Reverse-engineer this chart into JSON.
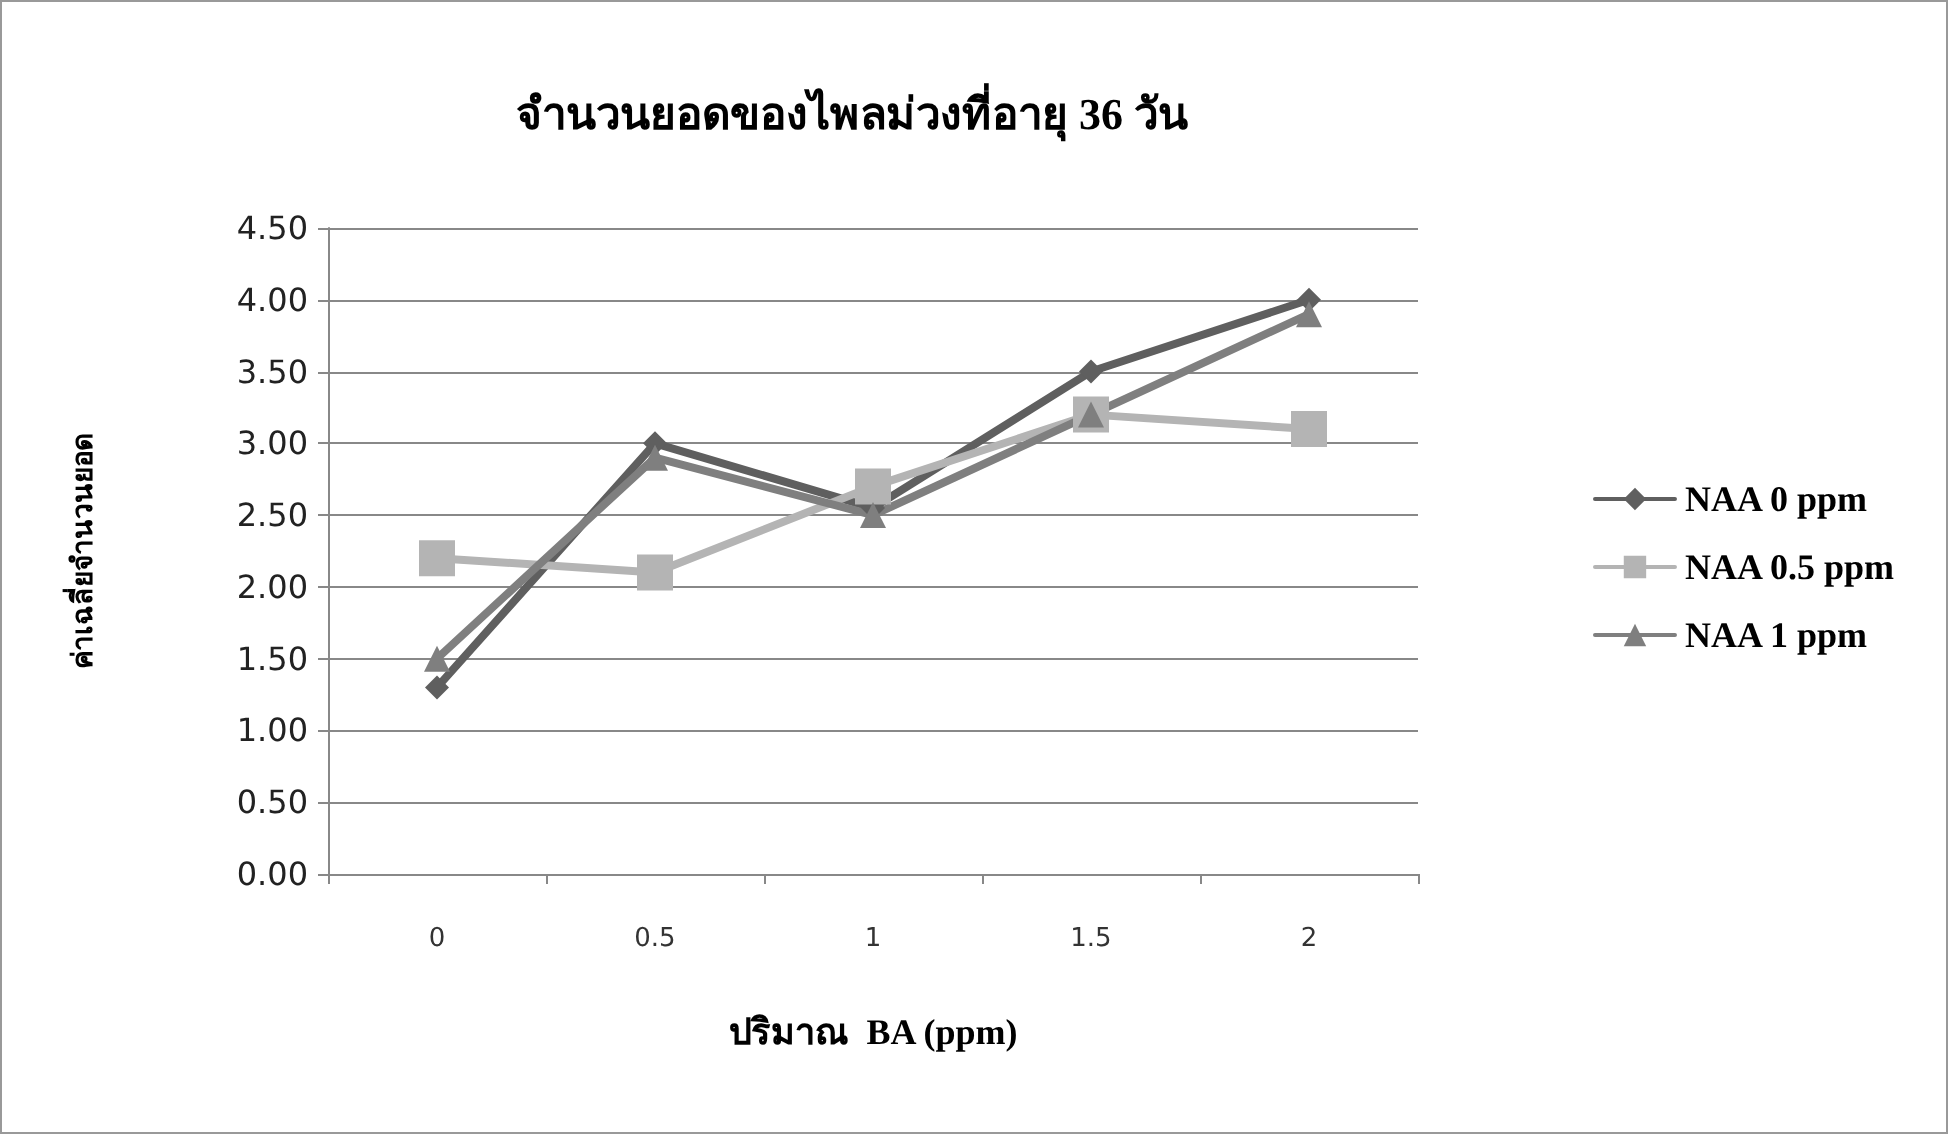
{
  "chart_data": {
    "type": "line",
    "title": "จำนวนยอดของไพลม่วงที่อายุ 36 วัน",
    "xlabel": "ปริมาณ  BA (ppm)",
    "ylabel": "ค่าเฉลี่ยจำนวนยอด",
    "categories": [
      "0",
      "0.5",
      "1",
      "1.5",
      "2"
    ],
    "series": [
      {
        "name": "NAA 0 ppm",
        "color": "#5f5f5f",
        "marker": "diamond",
        "values": [
          1.3,
          3.0,
          2.55,
          3.5,
          4.0
        ]
      },
      {
        "name": "NAA 0.5 ppm",
        "color": "#b4b4b4",
        "marker": "square",
        "values": [
          2.2,
          2.1,
          2.7,
          3.2,
          3.1
        ]
      },
      {
        "name": "NAA 1 ppm",
        "color": "#7f7f7f",
        "marker": "triangle",
        "values": [
          1.5,
          2.9,
          2.5,
          3.2,
          3.9
        ]
      }
    ],
    "ylim": [
      0,
      4.5
    ],
    "yticks": [
      {
        "value": 0,
        "label": "0.00"
      },
      {
        "value": 0.5,
        "label": "0.50"
      },
      {
        "value": 1,
        "label": "1.00"
      },
      {
        "value": 1.5,
        "label": "1.50"
      },
      {
        "value": 2,
        "label": "2.00"
      },
      {
        "value": 2.5,
        "label": "2.50"
      },
      {
        "value": 3,
        "label": "3.00"
      },
      {
        "value": 3.5,
        "label": "3.50"
      },
      {
        "value": 4,
        "label": "4.00"
      },
      {
        "value": 4.5,
        "label": "4.50"
      }
    ],
    "grid": "y",
    "legend": "right"
  }
}
